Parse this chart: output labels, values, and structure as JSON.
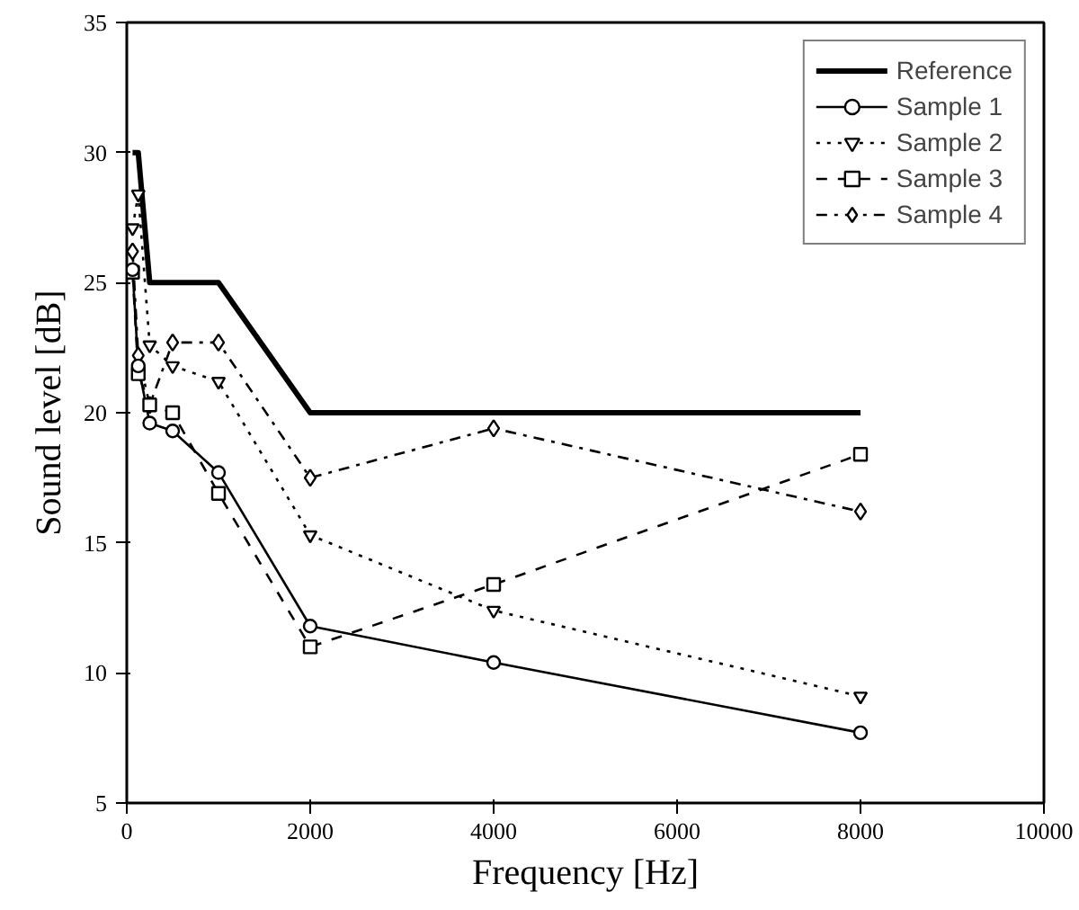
{
  "chart_data": {
    "type": "line",
    "xlabel": "Frequency [Hz]",
    "ylabel": "Sound level [dB]",
    "x": [
      63,
      125,
      250,
      500,
      1000,
      2000,
      4000,
      8000
    ],
    "series": [
      {
        "name": "Reference",
        "color": "#000000",
        "marker": "none",
        "line_style": "solid",
        "values": [
          30,
          30,
          25,
          25,
          25,
          20,
          20,
          20
        ]
      },
      {
        "name": "Sample 1",
        "color": "#000000",
        "marker": "circle",
        "line_style": "solid",
        "values": [
          25.5,
          21.8,
          19.6,
          19.3,
          17.7,
          11.8,
          10.4,
          7.7
        ]
      },
      {
        "name": "Sample 2",
        "color": "#000000",
        "marker": "triangle",
        "line_style": "dotted",
        "values": [
          27.1,
          28.4,
          22.6,
          21.8,
          21.2,
          15.3,
          12.4,
          9.1
        ]
      },
      {
        "name": "Sample 3",
        "color": "#000000",
        "marker": "square",
        "line_style": "dashed",
        "values": [
          25.4,
          21.5,
          20.3,
          20.0,
          16.9,
          11.0,
          13.4,
          18.4
        ]
      },
      {
        "name": "Sample 4",
        "color": "#000000",
        "marker": "diamond",
        "line_style": "dashdot",
        "values": [
          26.2,
          22.2,
          20.3,
          22.7,
          22.7,
          17.5,
          19.4,
          16.2
        ]
      }
    ],
    "xlim": [
      0,
      10000
    ],
    "ylim": [
      5,
      35
    ],
    "xticks": [
      0,
      2000,
      4000,
      6000,
      8000,
      10000
    ],
    "yticks": [
      5,
      10,
      15,
      20,
      25,
      30,
      35
    ],
    "grid": false,
    "legend": "top right"
  }
}
